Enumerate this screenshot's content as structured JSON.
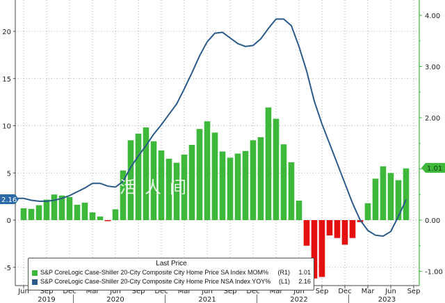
{
  "chart_data": {
    "type": "bar+line",
    "x": [
      "Jun 2019",
      "Jul 2019",
      "Aug 2019",
      "Sep 2019",
      "Oct 2019",
      "Nov 2019",
      "Dec 2019",
      "Jan 2020",
      "Feb 2020",
      "Mar 2020",
      "Apr 2020",
      "May 2020",
      "Jun 2020",
      "Jul 2020",
      "Aug 2020",
      "Sep 2020",
      "Oct 2020",
      "Nov 2020",
      "Dec 2020",
      "Jan 2021",
      "Feb 2021",
      "Mar 2021",
      "Apr 2021",
      "May 2021",
      "Jun 2021",
      "Jul 2021",
      "Aug 2021",
      "Sep 2021",
      "Oct 2021",
      "Nov 2021",
      "Dec 2021",
      "Jan 2022",
      "Feb 2022",
      "Mar 2022",
      "Apr 2022",
      "May 2022",
      "Jun 2022",
      "Jul 2022",
      "Aug 2022",
      "Sep 2022",
      "Oct 2022",
      "Nov 2022",
      "Dec 2022",
      "Jan 2023",
      "Feb 2023",
      "Mar 2023",
      "Apr 2023",
      "May 2023",
      "Jun 2023",
      "Jul 2023",
      "Aug 2023"
    ],
    "series": [
      {
        "name": "S&P CoreLogic Case-Shiller 20-City Composite City Home Price SA Index MOM%",
        "axis": "R1",
        "type": "bar",
        "last": "1.01",
        "color": "#3db83a",
        "negative_color": "#e41010",
        "values": [
          0.23,
          0.22,
          0.29,
          0.4,
          0.5,
          0.48,
          0.45,
          0.3,
          0.34,
          0.15,
          0.07,
          -0.02,
          0.21,
          0.97,
          1.56,
          1.69,
          1.81,
          1.54,
          1.36,
          1.2,
          1.12,
          1.28,
          1.47,
          1.78,
          1.93,
          1.71,
          1.34,
          1.22,
          1.3,
          1.35,
          1.56,
          1.62,
          2.2,
          1.98,
          1.48,
          1.13,
          0.38,
          -0.5,
          -1.14,
          -1.11,
          -0.3,
          -0.35,
          -0.48,
          -0.35,
          -0.04,
          0.33,
          0.81,
          1.05,
          0.92,
          0.78,
          1.01
        ]
      },
      {
        "name": "S&P CoreLogic Case-Shiller 20-City Composite City Home Price NSA Index YOY%",
        "axis": "L1",
        "type": "line",
        "last": "2.16",
        "color": "#2a5a8a",
        "values": [
          2.3,
          2.1,
          2.0,
          2.0,
          2.1,
          2.3,
          2.6,
          3.0,
          3.4,
          3.9,
          3.9,
          3.6,
          3.5,
          4.1,
          5.6,
          6.8,
          7.9,
          9.1,
          10.1,
          11.2,
          12.3,
          13.9,
          15.6,
          17.4,
          18.9,
          19.8,
          19.9,
          19.3,
          18.7,
          18.4,
          18.5,
          19.2,
          20.3,
          21.3,
          21.3,
          20.6,
          18.4,
          15.8,
          12.6,
          10.2,
          8.1,
          6.0,
          3.9,
          1.8,
          0.0,
          -1.1,
          -1.6,
          -1.7,
          -1.2,
          0.4,
          2.16
        ]
      }
    ],
    "left_axis": {
      "ticks": [
        "-5",
        "0",
        "5",
        "10",
        "15",
        "20"
      ],
      "range": [
        -6.9,
        23.3
      ]
    },
    "right_axis": {
      "ticks": [
        "-1.00",
        "0.00",
        "1.00",
        "2.00",
        "3.00",
        "4.00"
      ],
      "range": [
        -1.28,
        4.3
      ]
    },
    "x_tick_labels": [
      "Jun",
      "Sep",
      "Dec",
      "Mar",
      "Jun",
      "Sep",
      "Dec",
      "Mar",
      "Jun",
      "Sep",
      "Dec",
      "Mar",
      "Jun",
      "Sep",
      "Dec",
      "Mar",
      "Jun",
      "Sep"
    ],
    "year_labels": [
      "2019",
      "2020",
      "2021",
      "2022",
      "2023"
    ],
    "legend": {
      "title": "Last Price",
      "placement": "bottom-left"
    },
    "grid": true
  },
  "badges": {
    "left": "2.16",
    "right": "1.01"
  },
  "watermark": "活人间"
}
